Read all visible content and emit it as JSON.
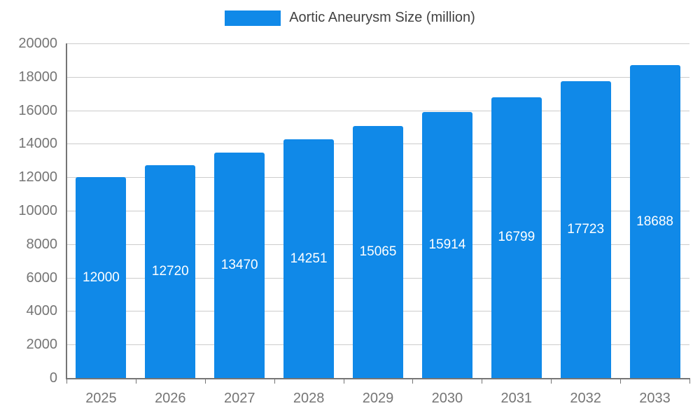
{
  "colors": {
    "bar": "#1089E8",
    "grid": "#CCCCCC",
    "axis_line": "#757575",
    "axis_text": "#757575",
    "legend_text": "#424242",
    "value_text": "#FFFFFF",
    "background": "#FFFFFF"
  },
  "chart_data": {
    "type": "bar",
    "title": "Aortic Aneurysm Size (million)",
    "categories": [
      "2025",
      "2026",
      "2027",
      "2028",
      "2029",
      "2030",
      "2031",
      "2032",
      "2033"
    ],
    "values": [
      12000,
      12720,
      13470,
      14251,
      15065,
      15914,
      16799,
      17723,
      18688
    ],
    "xlabel": "",
    "ylabel": "",
    "ylim": [
      0,
      20000
    ],
    "ytick_step": 2000,
    "ytick_labels": [
      "0",
      "2000",
      "4000",
      "6000",
      "8000",
      "10000",
      "12000",
      "14000",
      "16000",
      "18000",
      "20000"
    ],
    "grid": "horizontal",
    "legend_position": "top-center",
    "value_labels": "inside-center"
  }
}
